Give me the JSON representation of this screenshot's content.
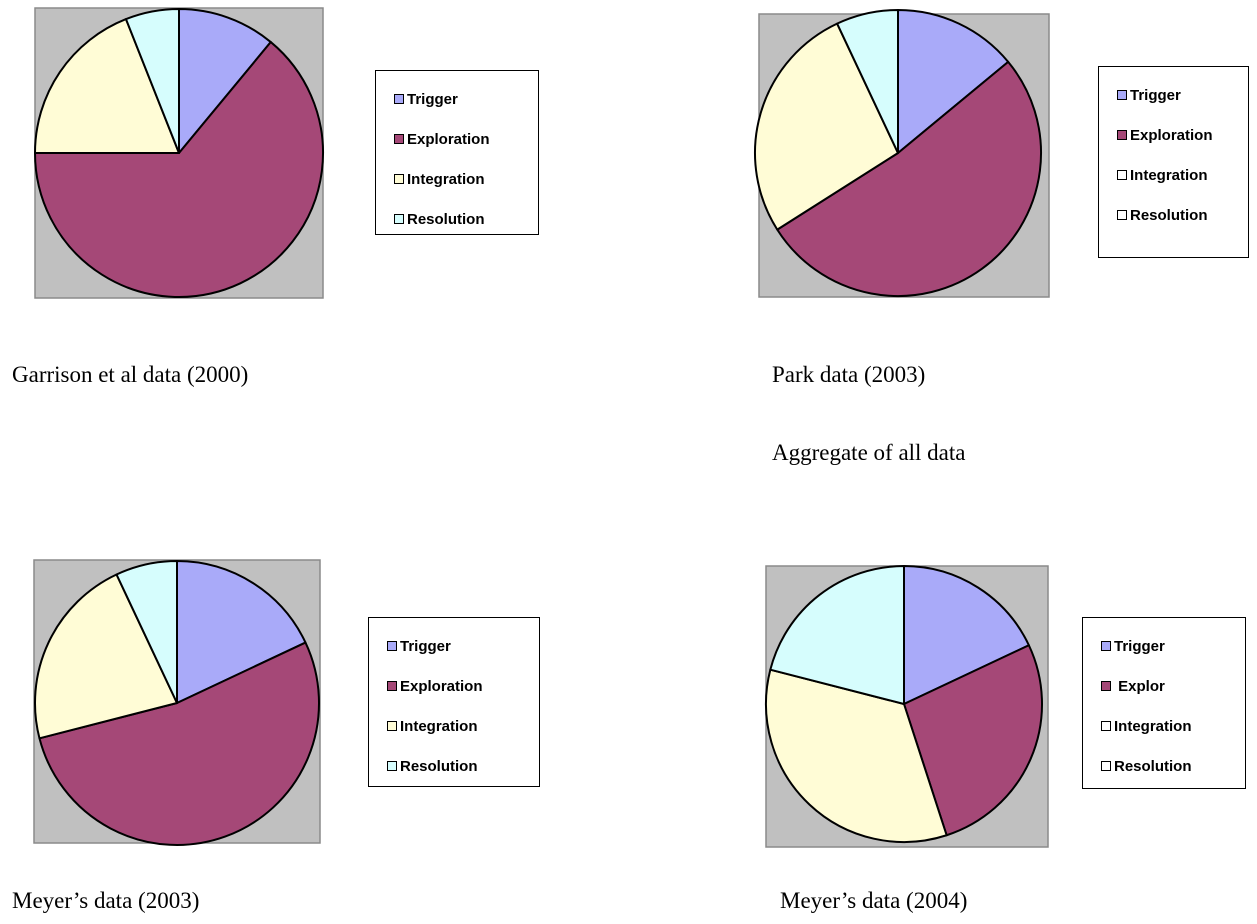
{
  "chart_data": [
    {
      "type": "pie",
      "caption": "Garrison et al data (2000)",
      "categories": [
        "Trigger",
        "Exploration",
        "Integration",
        "Resolution"
      ],
      "values": [
        11,
        64,
        19,
        6
      ],
      "colors": [
        "#a9aaf9",
        "#a54877",
        "#fffcd6",
        "#d6fdfd"
      ],
      "legend": {
        "placement": "right",
        "items": [
          {
            "label": "Trigger",
            "color": "#a9aaf9"
          },
          {
            "label": "Exploration",
            "color": "#a54877"
          },
          {
            "label": "Integration",
            "color": "#fffcd6"
          },
          {
            "label": "Resolution",
            "color": "#d6fdfd"
          }
        ]
      }
    },
    {
      "type": "pie",
      "caption": "Park data (2003)",
      "categories": [
        "Trigger",
        "Exploration",
        "Integration",
        "Resolution"
      ],
      "values": [
        14,
        52,
        27,
        7
      ],
      "colors": [
        "#a9aaf9",
        "#a54877",
        "#fffcd6",
        "#d6fdfd"
      ],
      "legend": {
        "placement": "right",
        "items": [
          {
            "label": "Trigger",
            "color": "#a9aaf9"
          },
          {
            "label": "Exploration",
            "color": "#a54877"
          },
          {
            "label": "Integration",
            "color": "#ffffff"
          },
          {
            "label": "Resolution",
            "color": "#ffffff"
          }
        ]
      }
    },
    {
      "type": "pie",
      "caption": "Meyer’s data (2003)",
      "categories": [
        "Trigger",
        "Exploration",
        "Integration",
        "Resolution"
      ],
      "values": [
        18,
        53,
        22,
        7
      ],
      "colors": [
        "#a9aaf9",
        "#a54877",
        "#fffcd6",
        "#d6fdfd"
      ],
      "legend": {
        "placement": "right",
        "items": [
          {
            "label": "Trigger",
            "color": "#a9aaf9"
          },
          {
            "label": "Exploration",
            "color": "#a54877"
          },
          {
            "label": "Integration",
            "color": "#fffcd6"
          },
          {
            "label": "Resolution",
            "color": "#d6fdfd"
          }
        ]
      }
    },
    {
      "type": "pie",
      "caption": "Meyer’s data (2004)",
      "categories": [
        "Trigger",
        "Explor",
        "Integration",
        "Resolution"
      ],
      "values": [
        18,
        27,
        34,
        21
      ],
      "colors": [
        "#a9aaf9",
        "#a54877",
        "#fffcd6",
        "#d6fdfd"
      ],
      "legend": {
        "placement": "right",
        "items": [
          {
            "label": "Trigger",
            "color": "#a9aaf9"
          },
          {
            "label": " Explor",
            "color": "#a54877"
          },
          {
            "label": "Integration",
            "color": "#ffffff"
          },
          {
            "label": "Resolution",
            "color": "#ffffff"
          }
        ]
      }
    }
  ],
  "extra_caption": "Aggregate of all data",
  "plot_area_color": "#c0c0c0",
  "slice_outline_color": "#000000"
}
